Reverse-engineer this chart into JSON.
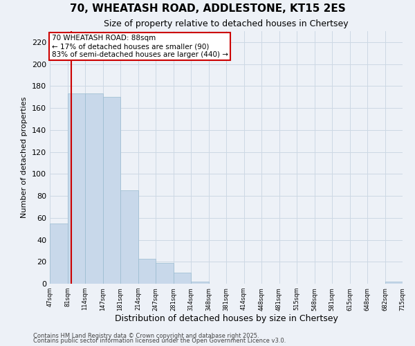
{
  "title": "70, WHEATASH ROAD, ADDLESTONE, KT15 2ES",
  "subtitle": "Size of property relative to detached houses in Chertsey",
  "xlabel": "Distribution of detached houses by size in Chertsey",
  "ylabel": "Number of detached properties",
  "bins": [
    "47sqm",
    "81sqm",
    "114sqm",
    "147sqm",
    "181sqm",
    "214sqm",
    "247sqm",
    "281sqm",
    "314sqm",
    "348sqm",
    "381sqm",
    "414sqm",
    "448sqm",
    "481sqm",
    "515sqm",
    "548sqm",
    "581sqm",
    "615sqm",
    "648sqm",
    "682sqm",
    "715sqm"
  ],
  "values": [
    55,
    173,
    173,
    170,
    85,
    23,
    19,
    10,
    2,
    0,
    0,
    0,
    0,
    0,
    0,
    0,
    0,
    0,
    0,
    2,
    0
  ],
  "bar_color": "#c8d8ea",
  "bar_edge_color": "#99bbd0",
  "grid_color": "#ccd8e4",
  "background_color": "#edf1f7",
  "vline_color": "#cc0000",
  "annotation_text": "70 WHEATASH ROAD: 88sqm\n← 17% of detached houses are smaller (90)\n83% of semi-detached houses are larger (440) →",
  "annotation_box_color": "#cc0000",
  "ylim": [
    0,
    230
  ],
  "yticks": [
    0,
    20,
    40,
    60,
    80,
    100,
    120,
    140,
    160,
    180,
    200,
    220
  ],
  "footnote1": "Contains HM Land Registry data © Crown copyright and database right 2025.",
  "footnote2": "Contains public sector information licensed under the Open Government Licence v3.0."
}
